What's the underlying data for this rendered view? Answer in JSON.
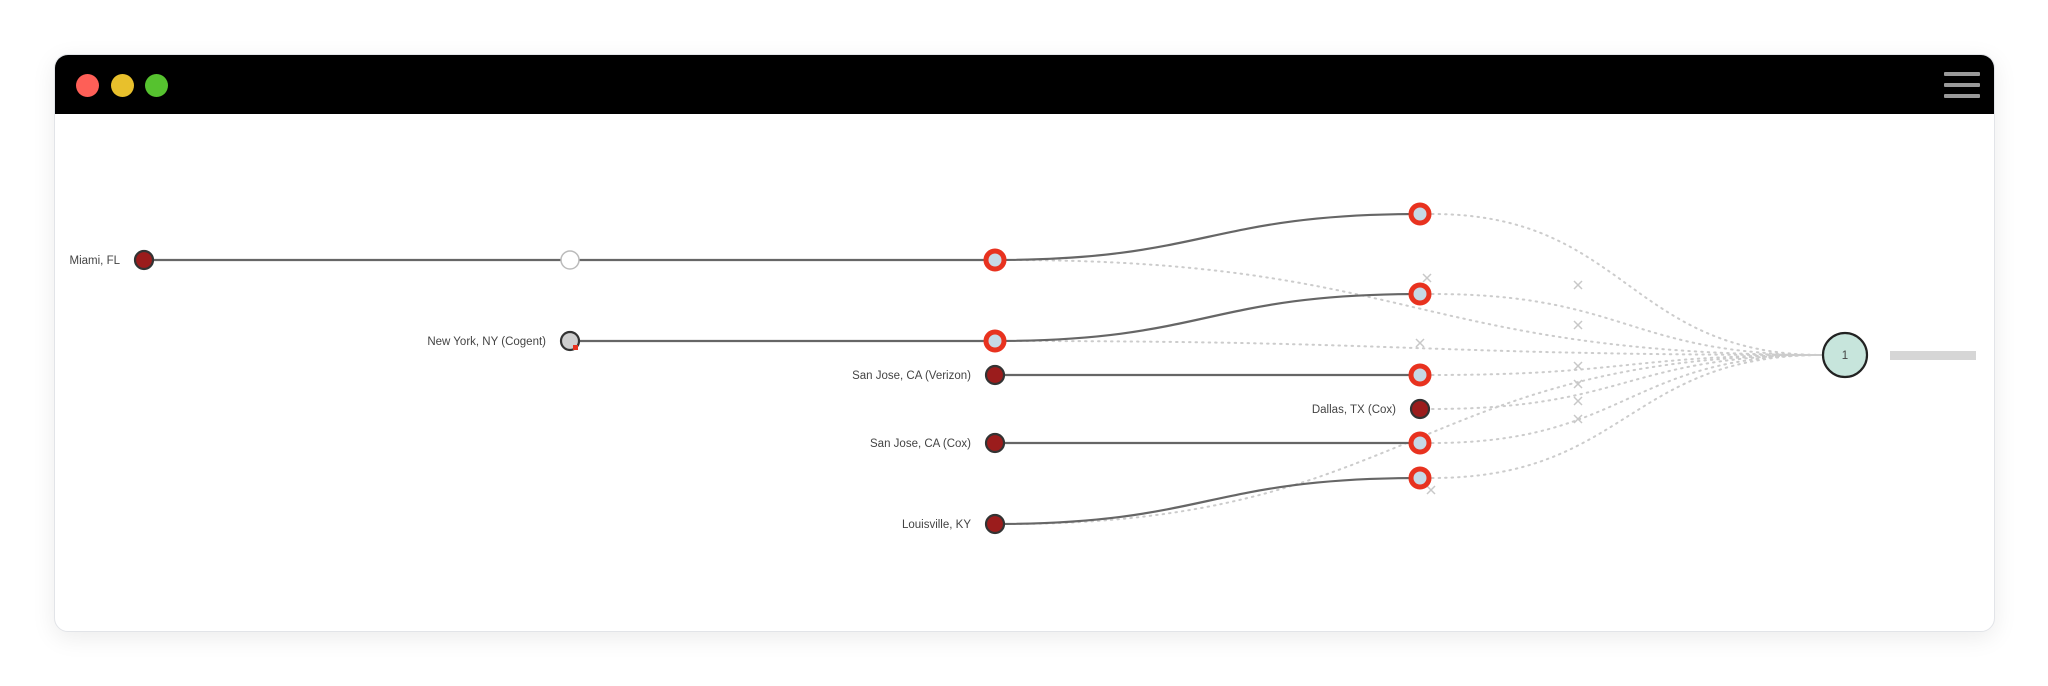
{
  "window": {
    "controls": [
      "close",
      "minimize",
      "maximize"
    ],
    "colors": {
      "close": "#fe5f57",
      "minimize": "#e8c02c",
      "maximize": "#56c22f"
    },
    "menu_icon": "hamburger-icon"
  },
  "diagram": {
    "colors": {
      "source": "#9b1c1c",
      "failed_ring": "#e8321f",
      "hop_fill": "#c6d9e6",
      "target_fill": "#c7e5dc",
      "path": "#666666",
      "dotted": "#cccccc"
    },
    "sources": [
      {
        "id": "miami",
        "label": "Miami, FL"
      },
      {
        "id": "ny",
        "label": "New York, NY (Cogent)"
      },
      {
        "id": "sjv",
        "label": "San Jose, CA (Verizon)"
      },
      {
        "id": "dallas",
        "label": "Dallas, TX (Cox)"
      },
      {
        "id": "sjc",
        "label": "San Jose, CA (Cox)"
      },
      {
        "id": "lou",
        "label": "Louisville, KY"
      }
    ],
    "target": {
      "label": "1"
    }
  }
}
